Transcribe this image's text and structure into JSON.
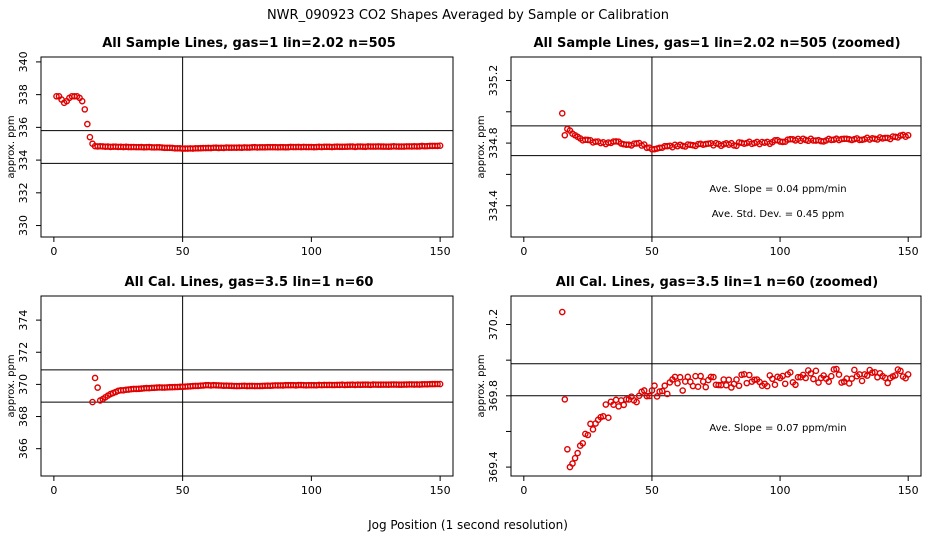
{
  "figure": {
    "title": "NWR_090923  CO2 Shapes Averaged by Sample or Calibration",
    "xlabel": "Jog Position (1 second resolution)"
  },
  "colors": {
    "points": "#e00000",
    "axes": "#000000",
    "background": "#ffffff"
  },
  "chart_data": [
    {
      "type": "scatter",
      "title": "All Sample Lines, gas=1 lin=2.02 n=505",
      "xlabel": "",
      "ylabel": "approx. ppm",
      "xlim": [
        -5,
        155
      ],
      "ylim": [
        329.3,
        340.3
      ],
      "xticks": [
        0,
        50,
        100,
        150
      ],
      "yticks": [
        330,
        332,
        334,
        336,
        338,
        340
      ],
      "vline": 50,
      "hlines": [
        333.8,
        335.8
      ],
      "annotations": [],
      "series": [
        {
          "name": "sample lines",
          "x0": 1,
          "x1": 150,
          "keypoints": [
            [
              1,
              337.9
            ],
            [
              2,
              337.9
            ],
            [
              3,
              337.7
            ],
            [
              4,
              337.5
            ],
            [
              5,
              337.6
            ],
            [
              6,
              337.8
            ],
            [
              7,
              337.9
            ],
            [
              8,
              337.9
            ],
            [
              9,
              337.9
            ],
            [
              10,
              337.8
            ],
            [
              11,
              337.6
            ],
            [
              12,
              337.1
            ],
            [
              13,
              336.2
            ],
            [
              14,
              335.4
            ],
            [
              15,
              335.0
            ],
            [
              16,
              334.85
            ],
            [
              20,
              334.82
            ],
            [
              40,
              334.78
            ],
            [
              48,
              334.72
            ],
            [
              50,
              334.7
            ],
            [
              55,
              334.72
            ],
            [
              60,
              334.74
            ],
            [
              80,
              334.78
            ],
            [
              100,
              334.8
            ],
            [
              120,
              334.82
            ],
            [
              140,
              334.84
            ],
            [
              150,
              334.88
            ]
          ]
        }
      ]
    },
    {
      "type": "scatter",
      "title": "All Sample Lines, gas=1 lin=2.02 n=505 (zoomed)",
      "xlabel": "",
      "ylabel": "approx. ppm",
      "xlim": [
        -5,
        155
      ],
      "ylim": [
        334.2,
        335.35
      ],
      "xticks": [
        0,
        50,
        100,
        150
      ],
      "yticks": [
        334.4,
        334.6,
        334.8,
        335.0,
        335.2
      ],
      "ytick_labels": [
        "334.4",
        "",
        "334.8",
        "",
        "335.2"
      ],
      "vline": 50,
      "hlines": [
        334.72,
        334.91
      ],
      "annotations": [
        "Ave. Slope =  0.04  ppm/min",
        "Ave. Std. Dev. =  0.45  ppm"
      ],
      "series": [
        {
          "name": "sample lines",
          "x0": 15,
          "x1": 150,
          "keypoints": [
            [
              15,
              334.99
            ],
            [
              16,
              334.85
            ],
            [
              17,
              334.89
            ],
            [
              18,
              334.88
            ],
            [
              19,
              334.86
            ],
            [
              20,
              334.85
            ],
            [
              22,
              334.83
            ],
            [
              25,
              334.82
            ],
            [
              30,
              334.8
            ],
            [
              35,
              334.81
            ],
            [
              40,
              334.79
            ],
            [
              45,
              334.8
            ],
            [
              48,
              334.77
            ],
            [
              50,
              334.76
            ],
            [
              53,
              334.77
            ],
            [
              56,
              334.78
            ],
            [
              60,
              334.78
            ],
            [
              70,
              334.79
            ],
            [
              80,
              334.79
            ],
            [
              90,
              334.8
            ],
            [
              100,
              334.81
            ],
            [
              110,
              334.82
            ],
            [
              120,
              334.82
            ],
            [
              130,
              334.83
            ],
            [
              140,
              334.83
            ],
            [
              145,
              334.84
            ],
            [
              150,
              334.85
            ]
          ]
        }
      ]
    },
    {
      "type": "scatter",
      "title": "All Cal. Lines, gas=3.5 lin=1 n=60",
      "xlabel": "",
      "ylabel": "approx. ppm",
      "xlim": [
        -5,
        155
      ],
      "ylim": [
        364.3,
        375.5
      ],
      "xticks": [
        0,
        50,
        100,
        150
      ],
      "yticks": [
        366,
        368,
        370,
        372,
        374
      ],
      "vline": 50,
      "hlines": [
        368.9,
        370.9
      ],
      "annotations": [],
      "series": [
        {
          "name": "cal lines",
          "x0": 15,
          "x1": 150,
          "keypoints": [
            [
              15,
              368.9
            ],
            [
              16,
              370.4
            ],
            [
              17,
              369.8
            ],
            [
              18,
              369.0
            ],
            [
              20,
              369.2
            ],
            [
              22,
              369.4
            ],
            [
              25,
              369.6
            ],
            [
              30,
              369.7
            ],
            [
              40,
              369.8
            ],
            [
              50,
              369.85
            ],
            [
              60,
              369.95
            ],
            [
              70,
              369.9
            ],
            [
              80,
              369.9
            ],
            [
              90,
              369.95
            ],
            [
              100,
              369.95
            ],
            [
              110,
              369.97
            ],
            [
              120,
              369.98
            ],
            [
              130,
              369.98
            ],
            [
              140,
              369.99
            ],
            [
              150,
              370.02
            ]
          ]
        }
      ]
    },
    {
      "type": "scatter",
      "title": "All Cal. Lines, gas=3.5 lin=1 n=60 (zoomed)",
      "xlabel": "",
      "ylabel": "approx. ppm",
      "xlim": [
        -5,
        155
      ],
      "ylim": [
        369.35,
        370.36
      ],
      "xticks": [
        0,
        50,
        100,
        150
      ],
      "yticks": [
        369.4,
        369.6,
        369.8,
        370.0,
        370.2
      ],
      "ytick_labels": [
        "369.4",
        "",
        "369.8",
        "",
        "370.2"
      ],
      "vline": 50,
      "hlines": [
        369.8,
        369.98
      ],
      "annotations": [
        "Ave. Slope =  0.07  ppm/min"
      ],
      "series": [
        {
          "name": "cal lines",
          "x0": 15,
          "x1": 150,
          "keypoints": [
            [
              15,
              370.27
            ],
            [
              16,
              369.78
            ],
            [
              17,
              369.5
            ],
            [
              18,
              369.4
            ],
            [
              19,
              369.42
            ],
            [
              20,
              369.45
            ],
            [
              22,
              369.52
            ],
            [
              25,
              369.58
            ],
            [
              30,
              369.68
            ],
            [
              35,
              369.75
            ],
            [
              40,
              369.78
            ],
            [
              45,
              369.8
            ],
            [
              50,
              369.83
            ],
            [
              60,
              369.87
            ],
            [
              70,
              369.88
            ],
            [
              80,
              369.89
            ],
            [
              90,
              369.89
            ],
            [
              100,
              369.9
            ],
            [
              110,
              369.9
            ],
            [
              120,
              369.91
            ],
            [
              130,
              369.91
            ],
            [
              140,
              369.91
            ],
            [
              150,
              369.92
            ]
          ]
        }
      ]
    }
  ]
}
